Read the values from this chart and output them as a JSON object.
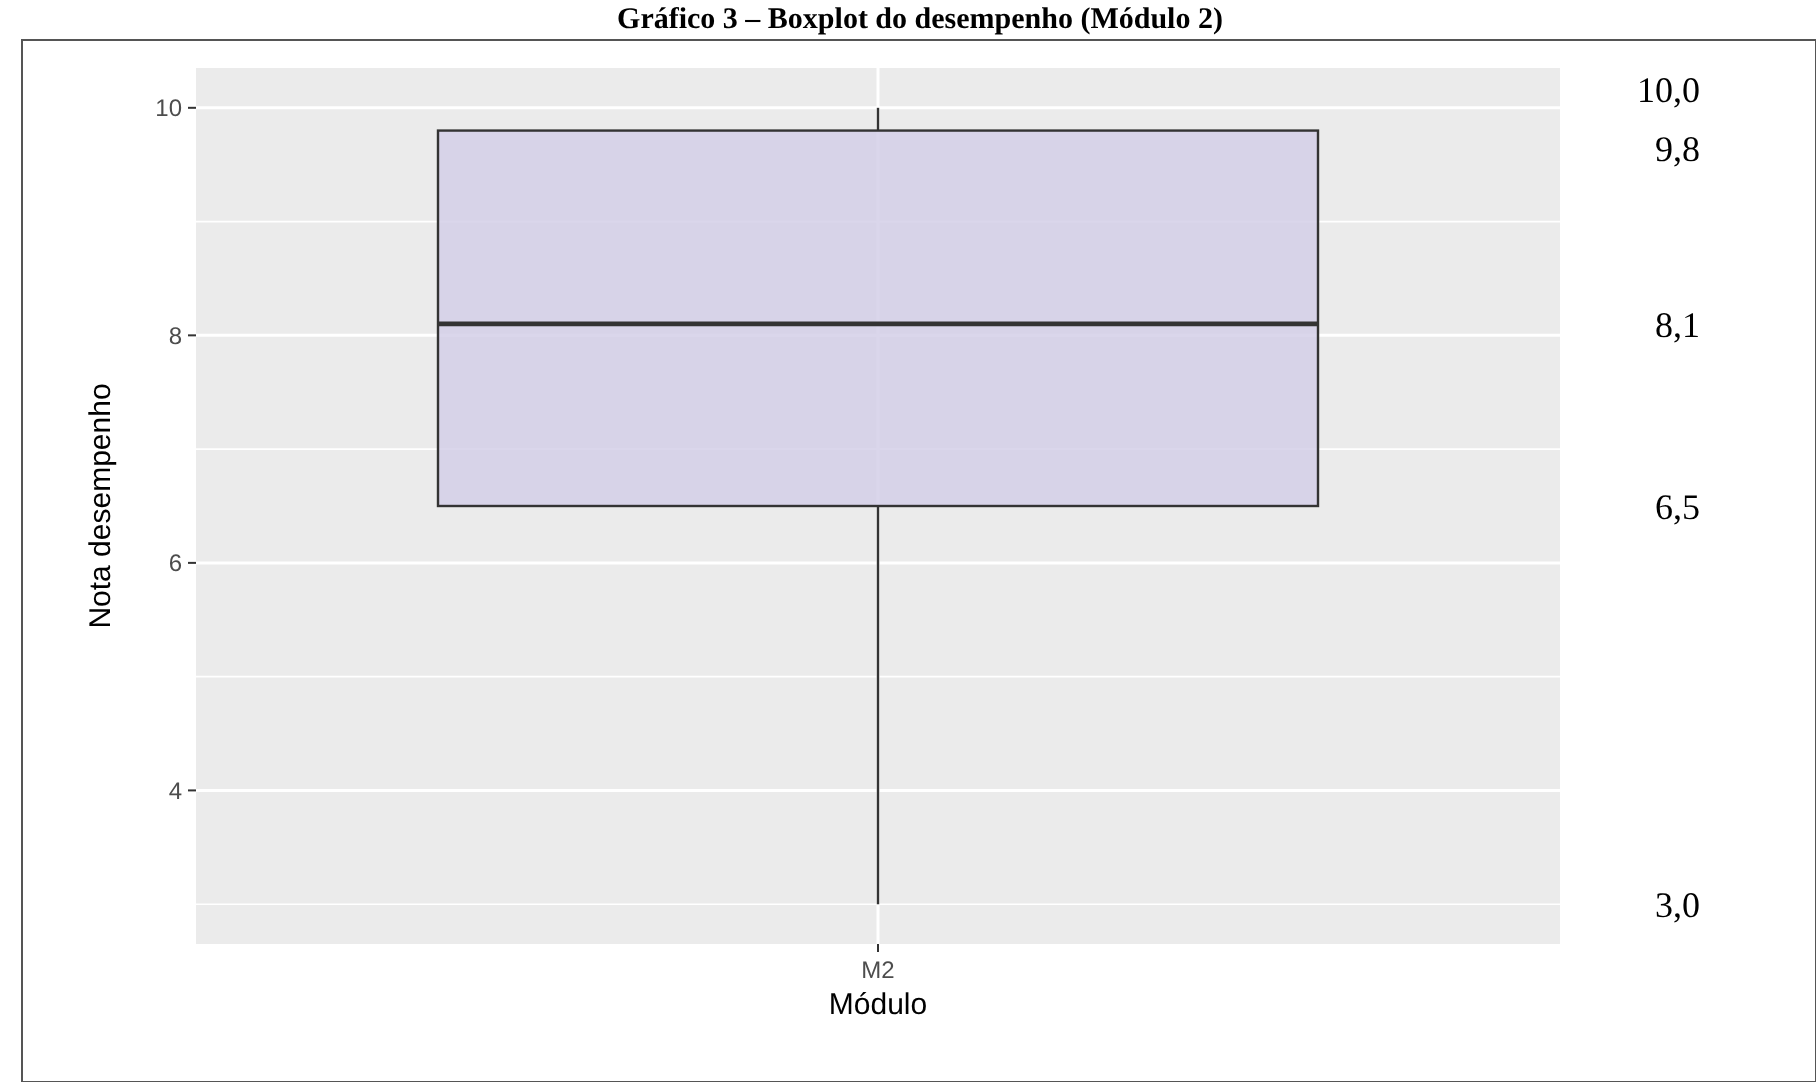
{
  "chart_data": {
    "type": "box",
    "title": "Gráfico 3 – Boxplot do desempenho (Módulo 2)",
    "xlabel": "Módulo",
    "ylabel": "Nota desempenho",
    "categories": [
      "M2"
    ],
    "boxes": [
      {
        "low": 3.0,
        "q1": 6.5,
        "median": 8.1,
        "q3": 9.8,
        "high": 10.0
      }
    ],
    "color": "#d3cfe8",
    "ylim": [
      2.65,
      10.35
    ],
    "yticks": [
      4,
      6,
      8,
      10
    ],
    "grid": true,
    "annotations": [
      "10,0",
      "9,8",
      "8,1",
      "6,5",
      "3,0"
    ]
  }
}
